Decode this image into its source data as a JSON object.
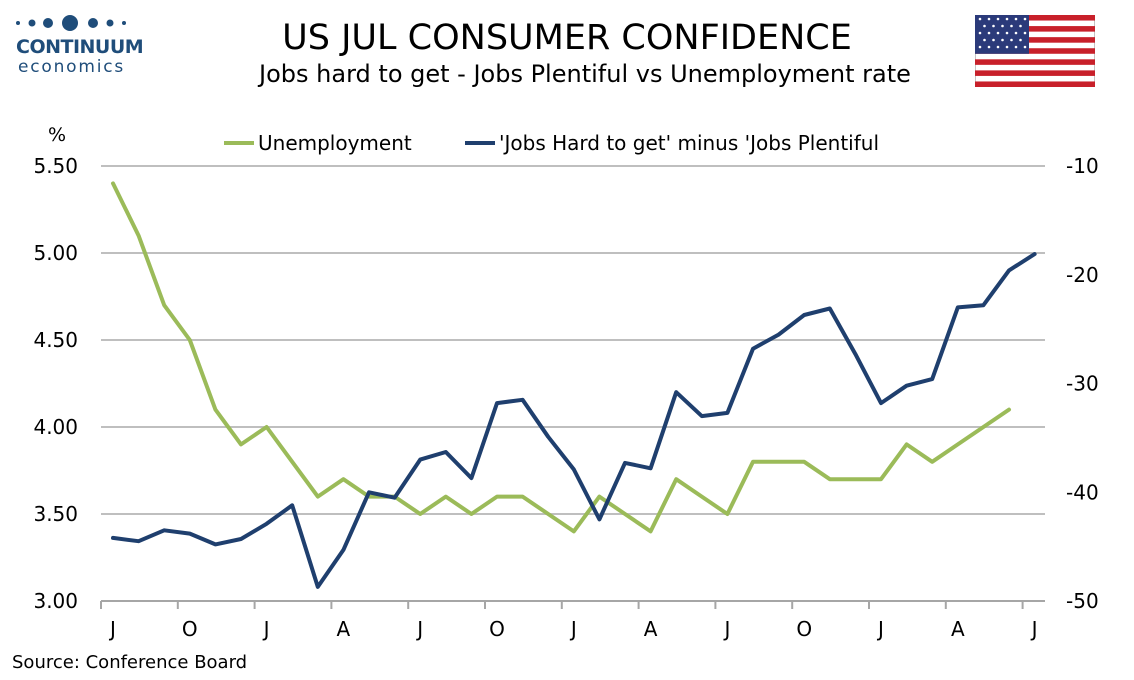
{
  "logo": {
    "name": "CONTINUUM",
    "sub": "economics"
  },
  "title": "US JUL CONSUMER CONFIDENCE",
  "subtitle": "Jobs hard to get - Jobs Plentiful vs Unemployment rate",
  "source": "Source: Conference Board",
  "colors": {
    "unemployment": "#9bbb59",
    "jobs": "#1f3f6e",
    "grid": "#bfbfbf",
    "logo": "#1f4d7a"
  },
  "flag_icon": "us-flag-icon",
  "chart_data": {
    "type": "line",
    "left_axis_unit": "%",
    "x_tick_labels": [
      "J",
      "O",
      "J",
      "A",
      "J",
      "O",
      "J",
      "A",
      "J",
      "O",
      "J",
      "A",
      "J"
    ],
    "x_count": 37,
    "ylim_left": [
      3.0,
      5.5
    ],
    "yticks_left": [
      "5.50",
      "5.00",
      "4.50",
      "4.00",
      "3.50",
      "3.00"
    ],
    "ylim_right": [
      -50,
      -10
    ],
    "yticks_right": [
      "-10",
      "-20",
      "-30",
      "-40",
      "-50"
    ],
    "legend_position": "top",
    "grid": true,
    "series": [
      {
        "name": "Unemployment",
        "axis": "left",
        "values": [
          5.4,
          5.1,
          4.7,
          4.5,
          4.1,
          3.9,
          4.0,
          3.8,
          3.6,
          3.7,
          3.6,
          3.6,
          3.5,
          3.6,
          3.5,
          3.6,
          3.6,
          3.5,
          3.4,
          3.6,
          3.5,
          3.4,
          3.7,
          3.6,
          3.5,
          3.8,
          3.8,
          3.8,
          3.7,
          3.7,
          3.7,
          3.9,
          3.8,
          3.9,
          4.0,
          4.1
        ]
      },
      {
        "name": "'Jobs Hard to get' minus 'Jobs Plentiful",
        "axis": "right",
        "values": [
          -44.2,
          -44.5,
          -43.5,
          -43.8,
          -44.8,
          -44.3,
          -42.9,
          -41.2,
          -48.7,
          -45.3,
          -40.0,
          -40.5,
          -37.0,
          -36.3,
          -38.7,
          -31.8,
          -31.5,
          -34.9,
          -37.9,
          -42.5,
          -37.3,
          -37.8,
          -30.8,
          -33.0,
          -32.7,
          -26.8,
          -25.5,
          -23.7,
          -23.1,
          -27.3,
          -31.8,
          -30.2,
          -29.6,
          -23.0,
          -22.8,
          -19.6,
          -18.1
        ]
      }
    ]
  }
}
